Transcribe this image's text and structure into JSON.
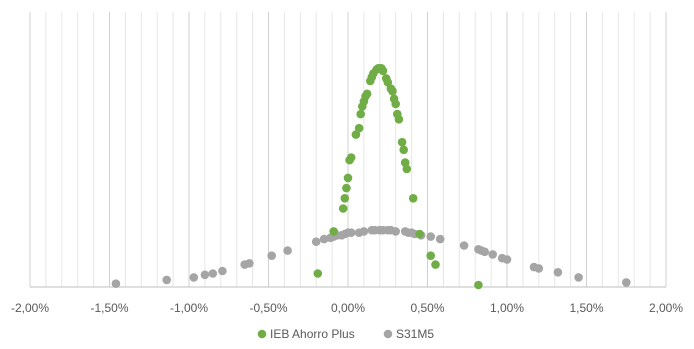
{
  "chart_data": {
    "type": "scatter",
    "title": "",
    "xlabel": "",
    "ylabel": "",
    "xlim": [
      -0.02,
      0.02
    ],
    "x_ticks": [
      -0.02,
      -0.015,
      -0.01,
      -0.005,
      0.0,
      0.005,
      0.01,
      0.015,
      0.02
    ],
    "x_tick_labels": [
      "-2,00%",
      "-1,50%",
      "-1,00%",
      "-0,50%",
      "0,00%",
      "0,50%",
      "1,00%",
      "1,50%",
      "2,00%"
    ],
    "ylim": [
      0,
      100
    ],
    "grid": {
      "vertical_major": true,
      "vertical_minor": true,
      "horizontal": false
    },
    "legend_position": "bottom",
    "series": [
      {
        "name": "IEB Ahorro Plus",
        "color": "#70AD47",
        "points": [
          {
            "x": -0.0019,
            "y": 4.5
          },
          {
            "x": -0.0009,
            "y": 21
          },
          {
            "x": -0.0003,
            "y": 30
          },
          {
            "x": -0.0002,
            "y": 34
          },
          {
            "x": -0.0001,
            "y": 38
          },
          {
            "x": 0.0,
            "y": 42
          },
          {
            "x": 0.0001,
            "y": 49
          },
          {
            "x": 0.0002,
            "y": 50
          },
          {
            "x": 0.0005,
            "y": 59
          },
          {
            "x": 0.0007,
            "y": 61.5
          },
          {
            "x": 0.0008,
            "y": 67
          },
          {
            "x": 0.0009,
            "y": 70
          },
          {
            "x": 0.001,
            "y": 72
          },
          {
            "x": 0.0011,
            "y": 74
          },
          {
            "x": 0.0012,
            "y": 75
          },
          {
            "x": 0.0014,
            "y": 80
          },
          {
            "x": 0.0015,
            "y": 81.5
          },
          {
            "x": 0.0016,
            "y": 83
          },
          {
            "x": 0.0018,
            "y": 84.5
          },
          {
            "x": 0.0019,
            "y": 85
          },
          {
            "x": 0.002,
            "y": 85
          },
          {
            "x": 0.0021,
            "y": 85
          },
          {
            "x": 0.0022,
            "y": 84
          },
          {
            "x": 0.0024,
            "y": 81
          },
          {
            "x": 0.0025,
            "y": 79.5
          },
          {
            "x": 0.0027,
            "y": 77
          },
          {
            "x": 0.0028,
            "y": 76
          },
          {
            "x": 0.0029,
            "y": 73
          },
          {
            "x": 0.003,
            "y": 71
          },
          {
            "x": 0.0031,
            "y": 67
          },
          {
            "x": 0.0032,
            "y": 65
          },
          {
            "x": 0.0034,
            "y": 56
          },
          {
            "x": 0.0035,
            "y": 53
          },
          {
            "x": 0.0036,
            "y": 48
          },
          {
            "x": 0.0037,
            "y": 45.5
          },
          {
            "x": 0.0041,
            "y": 34
          },
          {
            "x": 0.0045,
            "y": 20
          },
          {
            "x": 0.0052,
            "y": 11.5
          },
          {
            "x": 0.0055,
            "y": 8
          },
          {
            "x": 0.0082,
            "y": 0
          }
        ]
      },
      {
        "name": "S31M5",
        "color": "#A5A5A5",
        "points": [
          {
            "x": -0.0146,
            "y": 0.5
          },
          {
            "x": -0.0114,
            "y": 2
          },
          {
            "x": -0.0097,
            "y": 3
          },
          {
            "x": -0.009,
            "y": 4
          },
          {
            "x": -0.0085,
            "y": 4.5
          },
          {
            "x": -0.0079,
            "y": 5.5
          },
          {
            "x": -0.0065,
            "y": 8
          },
          {
            "x": -0.0062,
            "y": 8.5
          },
          {
            "x": -0.0048,
            "y": 11.5
          },
          {
            "x": -0.0038,
            "y": 13.5
          },
          {
            "x": -0.002,
            "y": 17
          },
          {
            "x": -0.0015,
            "y": 18
          },
          {
            "x": -0.0011,
            "y": 18.5
          },
          {
            "x": -0.0009,
            "y": 19
          },
          {
            "x": -0.0007,
            "y": 19.5
          },
          {
            "x": -0.0004,
            "y": 19.5
          },
          {
            "x": -0.0002,
            "y": 20
          },
          {
            "x": 0.0,
            "y": 20.5
          },
          {
            "x": 0.0002,
            "y": 20.5
          },
          {
            "x": 0.0007,
            "y": 20.5
          },
          {
            "x": 0.001,
            "y": 21
          },
          {
            "x": 0.0015,
            "y": 21.5
          },
          {
            "x": 0.0017,
            "y": 21.5
          },
          {
            "x": 0.002,
            "y": 21.5
          },
          {
            "x": 0.0022,
            "y": 21.5
          },
          {
            "x": 0.0025,
            "y": 21.5
          },
          {
            "x": 0.0027,
            "y": 21.5
          },
          {
            "x": 0.003,
            "y": 21
          },
          {
            "x": 0.0036,
            "y": 21
          },
          {
            "x": 0.0038,
            "y": 20.5
          },
          {
            "x": 0.004,
            "y": 20.5
          },
          {
            "x": 0.0042,
            "y": 20
          },
          {
            "x": 0.0046,
            "y": 19.5
          },
          {
            "x": 0.0052,
            "y": 19
          },
          {
            "x": 0.0058,
            "y": 18
          },
          {
            "x": 0.0073,
            "y": 15.5
          },
          {
            "x": 0.0082,
            "y": 14
          },
          {
            "x": 0.0084,
            "y": 13.5
          },
          {
            "x": 0.0086,
            "y": 13
          },
          {
            "x": 0.0091,
            "y": 12
          },
          {
            "x": 0.0097,
            "y": 10.5
          },
          {
            "x": 0.01,
            "y": 10
          },
          {
            "x": 0.0117,
            "y": 7
          },
          {
            "x": 0.012,
            "y": 6.5
          },
          {
            "x": 0.0132,
            "y": 5
          },
          {
            "x": 0.0145,
            "y": 3
          },
          {
            "x": 0.0175,
            "y": 1
          }
        ]
      }
    ]
  }
}
